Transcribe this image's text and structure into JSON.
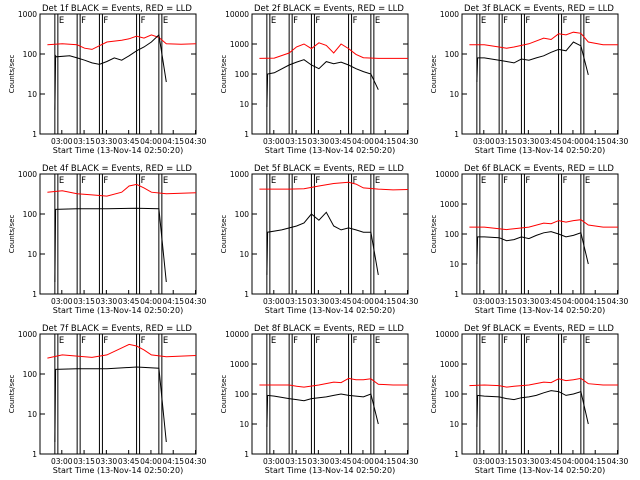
{
  "figure": {
    "xlabel": "Start Time (13-Nov-14 02:50:20)",
    "ylabel": "Counts/sec",
    "x_tick_labels": [
      "03:00",
      "03:15",
      "03:30",
      "03:45",
      "04:00",
      "04:15",
      "04:30"
    ],
    "colors": {
      "events": "#000000",
      "lld": "#ff0000",
      "axes": "#000000"
    }
  },
  "chart_data": [
    {
      "type": "line",
      "title": "Det 1f BLACK = Events, RED = LLD",
      "xlabel": "Start Time (13-Nov-14 02:50:20)",
      "ylabel": "Counts/sec",
      "xlim_minutes": [
        -5,
        100
      ],
      "ylim": [
        1,
        1000
      ],
      "log_y": true,
      "y_tick_labels": [
        "1",
        "10",
        "100",
        "1000"
      ],
      "x_tick_labels": [
        "03:00",
        "03:15",
        "03:30",
        "03:45",
        "04:00",
        "04:15",
        "04:30"
      ],
      "flag_letters": [
        "E",
        "F",
        "F",
        "F",
        "E"
      ],
      "events_x": [
        5,
        5.5,
        6,
        15,
        20,
        25,
        30,
        35,
        40,
        45,
        50,
        55,
        60,
        65,
        70,
        75,
        80
      ],
      "events_y": [
        4,
        90,
        85,
        90,
        80,
        70,
        60,
        55,
        65,
        80,
        70,
        90,
        120,
        150,
        200,
        300,
        20
      ],
      "lld_x": [
        0,
        10,
        20,
        25,
        30,
        40,
        50,
        55,
        60,
        65,
        70,
        75,
        80,
        90,
        100
      ],
      "lld_y": [
        170,
        180,
        170,
        140,
        130,
        200,
        220,
        240,
        280,
        250,
        300,
        260,
        180,
        175,
        180
      ]
    },
    {
      "type": "line",
      "title": "Det 2f BLACK = Events, RED = LLD",
      "xlabel": "Start Time (13-Nov-14 02:50:20)",
      "ylabel": "Counts/sec",
      "xlim_minutes": [
        -5,
        100
      ],
      "ylim": [
        1,
        10000
      ],
      "log_y": true,
      "y_tick_labels": [
        "1",
        "10",
        "100",
        "1000",
        "10000"
      ],
      "x_tick_labels": [
        "03:00",
        "03:15",
        "03:30",
        "03:45",
        "04:00",
        "04:15",
        "04:30"
      ],
      "flag_letters": [
        "E",
        "F",
        "F",
        "F",
        "E"
      ],
      "events_x": [
        5,
        5.5,
        10,
        20,
        25,
        30,
        35,
        40,
        45,
        50,
        55,
        60,
        65,
        70,
        75,
        80
      ],
      "events_y": [
        8,
        100,
        110,
        200,
        250,
        300,
        200,
        150,
        260,
        220,
        250,
        200,
        150,
        120,
        100,
        30
      ],
      "lld_x": [
        0,
        10,
        20,
        25,
        30,
        35,
        40,
        45,
        50,
        55,
        60,
        65,
        70,
        80,
        100
      ],
      "lld_y": [
        330,
        340,
        500,
        800,
        1000,
        700,
        1100,
        900,
        500,
        1000,
        700,
        450,
        350,
        330,
        330
      ]
    },
    {
      "type": "line",
      "title": "Det 3f BLACK = Events, RED = LLD",
      "xlabel": "Start Time (13-Nov-14 02:50:20)",
      "ylabel": "Counts/sec",
      "xlim_minutes": [
        -5,
        100
      ],
      "ylim": [
        1,
        1000
      ],
      "log_y": true,
      "y_tick_labels": [
        "1",
        "10",
        "100",
        "1000"
      ],
      "x_tick_labels": [
        "03:00",
        "03:15",
        "03:30",
        "03:45",
        "04:00",
        "04:15",
        "04:30"
      ],
      "flag_letters": [
        "E",
        "F",
        "F",
        "F",
        "E"
      ],
      "events_x": [
        5,
        5.5,
        10,
        20,
        25,
        30,
        35,
        40,
        45,
        50,
        55,
        60,
        65,
        70,
        75,
        80
      ],
      "events_y": [
        20,
        80,
        80,
        70,
        65,
        60,
        75,
        70,
        80,
        90,
        110,
        130,
        120,
        200,
        160,
        30
      ],
      "lld_x": [
        0,
        10,
        20,
        25,
        30,
        40,
        50,
        55,
        60,
        65,
        70,
        75,
        80,
        90,
        100
      ],
      "lld_y": [
        170,
        170,
        150,
        140,
        150,
        180,
        250,
        230,
        320,
        300,
        350,
        330,
        200,
        170,
        170
      ]
    },
    {
      "type": "line",
      "title": "Det 4f BLACK = Events, RED = LLD",
      "xlabel": "Start Time (13-Nov-14 02:50:20)",
      "ylabel": "Counts/sec",
      "xlim_minutes": [
        -5,
        100
      ],
      "ylim": [
        1,
        1000
      ],
      "log_y": true,
      "y_tick_labels": [
        "1",
        "10",
        "100",
        "1000"
      ],
      "x_tick_labels": [
        "03:00",
        "03:15",
        "03:30",
        "03:45",
        "04:00",
        "04:15",
        "04:30"
      ],
      "flag_letters": [
        "E",
        "F",
        "F",
        "F",
        "E"
      ],
      "events_x": [
        5,
        5.5,
        20,
        40,
        60,
        75,
        80
      ],
      "events_y": [
        2,
        130,
        135,
        135,
        140,
        135,
        2
      ],
      "lld_x": [
        0,
        10,
        20,
        30,
        40,
        50,
        55,
        60,
        65,
        70,
        80,
        90,
        100
      ],
      "lld_y": [
        350,
        380,
        320,
        300,
        280,
        350,
        500,
        550,
        450,
        350,
        320,
        330,
        340
      ]
    },
    {
      "type": "line",
      "title": "Det 5f BLACK = Events, RED = LLD",
      "xlabel": "Start Time (13-Nov-14 02:50:20)",
      "ylabel": "Counts/sec",
      "xlim_minutes": [
        -5,
        100
      ],
      "ylim": [
        1,
        1000
      ],
      "log_y": true,
      "y_tick_labels": [
        "1",
        "10",
        "100",
        "1000"
      ],
      "x_tick_labels": [
        "03:00",
        "03:15",
        "03:30",
        "03:45",
        "04:00",
        "04:15",
        "04:30"
      ],
      "flag_letters": [
        "E",
        "F",
        "F",
        "F",
        "E"
      ],
      "events_x": [
        5,
        5.5,
        15,
        25,
        30,
        35,
        40,
        45,
        50,
        55,
        60,
        65,
        70,
        75,
        80
      ],
      "events_y": [
        3,
        35,
        40,
        50,
        60,
        100,
        70,
        110,
        50,
        40,
        45,
        40,
        35,
        35,
        3
      ],
      "lld_x": [
        0,
        10,
        20,
        30,
        40,
        50,
        55,
        60,
        65,
        70,
        80,
        90,
        100
      ],
      "lld_y": [
        420,
        420,
        420,
        430,
        500,
        580,
        600,
        620,
        560,
        450,
        420,
        400,
        410
      ]
    },
    {
      "type": "line",
      "title": "Det 6f BLACK = Events, RED = LLD",
      "xlabel": "Start Time (13-Nov-14 02:50:20)",
      "ylabel": "Counts/sec",
      "xlim_minutes": [
        -5,
        100
      ],
      "ylim": [
        1,
        10000
      ],
      "log_y": true,
      "y_tick_labels": [
        "1",
        "10",
        "100",
        "1000",
        "10000"
      ],
      "x_tick_labels": [
        "03:00",
        "03:15",
        "03:30",
        "03:45",
        "04:00",
        "04:15",
        "04:30"
      ],
      "flag_letters": [
        "E",
        "F",
        "F",
        "F",
        "E"
      ],
      "events_x": [
        5,
        5.5,
        10,
        20,
        25,
        30,
        35,
        40,
        45,
        50,
        55,
        60,
        65,
        70,
        75,
        80
      ],
      "events_y": [
        10,
        80,
        80,
        75,
        60,
        65,
        80,
        70,
        90,
        110,
        120,
        100,
        80,
        90,
        110,
        10
      ],
      "lld_x": [
        0,
        10,
        20,
        25,
        30,
        40,
        50,
        55,
        60,
        65,
        70,
        75,
        80,
        90,
        100
      ],
      "lld_y": [
        170,
        170,
        150,
        140,
        150,
        170,
        230,
        220,
        280,
        250,
        280,
        300,
        200,
        170,
        170
      ]
    },
    {
      "type": "line",
      "title": "Det 7f BLACK = Events, RED = LLD",
      "xlabel": "Start Time (13-Nov-14 02:50:20)",
      "ylabel": "Counts/sec",
      "xlim_minutes": [
        -5,
        100
      ],
      "ylim": [
        1,
        1000
      ],
      "log_y": true,
      "y_tick_labels": [
        "1",
        "10",
        "100",
        "1000"
      ],
      "x_tick_labels": [
        "03:00",
        "03:15",
        "03:30",
        "03:45",
        "04:00",
        "04:15",
        "04:30"
      ],
      "flag_letters": [
        "E",
        "F",
        "F",
        "F",
        "E"
      ],
      "events_x": [
        5,
        5.5,
        20,
        40,
        60,
        75,
        80
      ],
      "events_y": [
        2,
        130,
        135,
        135,
        150,
        140,
        2
      ],
      "lld_x": [
        0,
        10,
        20,
        30,
        40,
        50,
        55,
        60,
        65,
        70,
        80,
        90,
        100
      ],
      "lld_y": [
        250,
        300,
        280,
        260,
        300,
        450,
        550,
        500,
        400,
        300,
        270,
        280,
        290
      ]
    },
    {
      "type": "line",
      "title": "Det 8f BLACK = Events, RED = LLD",
      "xlabel": "Start Time (13-Nov-14 02:50:20)",
      "ylabel": "Counts/sec",
      "xlim_minutes": [
        -5,
        100
      ],
      "ylim": [
        1,
        10000
      ],
      "log_y": true,
      "y_tick_labels": [
        "1",
        "10",
        "100",
        "1000",
        "10000"
      ],
      "x_tick_labels": [
        "03:00",
        "03:15",
        "03:30",
        "03:45",
        "04:00",
        "04:15",
        "04:30"
      ],
      "flag_letters": [
        "E",
        "F",
        "F",
        "F",
        "E"
      ],
      "events_x": [
        5,
        5.5,
        10,
        20,
        25,
        30,
        35,
        40,
        45,
        50,
        55,
        60,
        65,
        70,
        75,
        80
      ],
      "events_y": [
        8,
        90,
        85,
        70,
        65,
        60,
        70,
        75,
        80,
        90,
        100,
        90,
        85,
        80,
        100,
        10
      ],
      "lld_x": [
        0,
        10,
        20,
        25,
        30,
        40,
        50,
        55,
        60,
        65,
        70,
        75,
        80,
        90,
        100
      ],
      "lld_y": [
        200,
        200,
        200,
        180,
        170,
        200,
        250,
        240,
        330,
        300,
        300,
        320,
        210,
        200,
        200
      ]
    },
    {
      "type": "line",
      "title": "Det 9f BLACK = Events, RED = LLD",
      "xlabel": "Start Time (13-Nov-14 02:50:20)",
      "ylabel": "Counts/sec",
      "xlim_minutes": [
        -5,
        100
      ],
      "ylim": [
        1,
        10000
      ],
      "log_y": true,
      "y_tick_labels": [
        "1",
        "10",
        "100",
        "1000",
        "10000"
      ],
      "x_tick_labels": [
        "03:00",
        "03:15",
        "03:30",
        "03:45",
        "04:00",
        "04:15",
        "04:30"
      ],
      "flag_letters": [
        "E",
        "F",
        "F",
        "F",
        "E"
      ],
      "events_x": [
        5,
        5.5,
        10,
        20,
        25,
        30,
        35,
        40,
        45,
        50,
        55,
        60,
        65,
        70,
        75,
        80
      ],
      "events_y": [
        8,
        90,
        85,
        80,
        70,
        65,
        75,
        80,
        90,
        110,
        130,
        120,
        90,
        100,
        120,
        10
      ],
      "lld_x": [
        0,
        10,
        20,
        25,
        30,
        40,
        50,
        55,
        60,
        65,
        70,
        75,
        80,
        90,
        100
      ],
      "lld_y": [
        190,
        200,
        190,
        170,
        180,
        200,
        250,
        240,
        320,
        280,
        300,
        330,
        220,
        200,
        200
      ]
    }
  ]
}
